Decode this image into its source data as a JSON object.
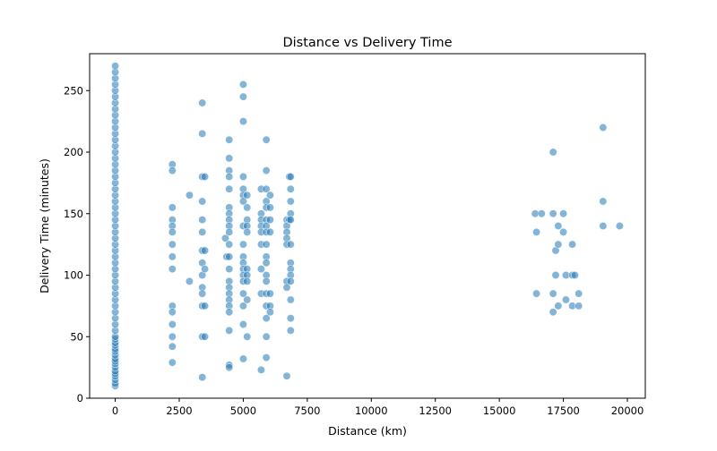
{
  "chart_data": {
    "type": "scatter",
    "title": "Distance vs Delivery Time",
    "xlabel": "Distance (km)",
    "ylabel": "Delivery Time (minutes)",
    "xlim": [
      -1000,
      20700
    ],
    "ylim": [
      0,
      280
    ],
    "xticks": [
      0,
      2500,
      5000,
      7500,
      10000,
      12500,
      15000,
      17500,
      20000
    ],
    "yticks": [
      0,
      50,
      100,
      150,
      200,
      250
    ],
    "grid": false,
    "marker_color": "#1f77b4",
    "marker_opacity": 0.55,
    "series": [
      {
        "points": [
          {
            "x": 0,
            "y": 10
          },
          {
            "x": 0,
            "y": 12
          },
          {
            "x": 0,
            "y": 15
          },
          {
            "x": 0,
            "y": 18
          },
          {
            "x": 0,
            "y": 20
          },
          {
            "x": 0,
            "y": 22
          },
          {
            "x": 0,
            "y": 25
          },
          {
            "x": 0,
            "y": 28
          },
          {
            "x": 0,
            "y": 30
          },
          {
            "x": 0,
            "y": 32
          },
          {
            "x": 0,
            "y": 35
          },
          {
            "x": 0,
            "y": 38
          },
          {
            "x": 0,
            "y": 40
          },
          {
            "x": 0,
            "y": 43
          },
          {
            "x": 0,
            "y": 45
          },
          {
            "x": 0,
            "y": 48
          },
          {
            "x": 0,
            "y": 50
          },
          {
            "x": 0,
            "y": 55
          },
          {
            "x": 0,
            "y": 60
          },
          {
            "x": 0,
            "y": 65
          },
          {
            "x": 0,
            "y": 70
          },
          {
            "x": 0,
            "y": 75
          },
          {
            "x": 0,
            "y": 80
          },
          {
            "x": 0,
            "y": 85
          },
          {
            "x": 0,
            "y": 90
          },
          {
            "x": 0,
            "y": 95
          },
          {
            "x": 0,
            "y": 100
          },
          {
            "x": 0,
            "y": 105
          },
          {
            "x": 0,
            "y": 110
          },
          {
            "x": 0,
            "y": 115
          },
          {
            "x": 0,
            "y": 120
          },
          {
            "x": 0,
            "y": 125
          },
          {
            "x": 0,
            "y": 130
          },
          {
            "x": 0,
            "y": 135
          },
          {
            "x": 0,
            "y": 140
          },
          {
            "x": 0,
            "y": 145
          },
          {
            "x": 0,
            "y": 150
          },
          {
            "x": 0,
            "y": 155
          },
          {
            "x": 0,
            "y": 160
          },
          {
            "x": 0,
            "y": 165
          },
          {
            "x": 0,
            "y": 170
          },
          {
            "x": 0,
            "y": 175
          },
          {
            "x": 0,
            "y": 180
          },
          {
            "x": 0,
            "y": 185
          },
          {
            "x": 0,
            "y": 190
          },
          {
            "x": 0,
            "y": 195
          },
          {
            "x": 0,
            "y": 200
          },
          {
            "x": 0,
            "y": 205
          },
          {
            "x": 0,
            "y": 210
          },
          {
            "x": 0,
            "y": 215
          },
          {
            "x": 0,
            "y": 220
          },
          {
            "x": 0,
            "y": 225
          },
          {
            "x": 0,
            "y": 230
          },
          {
            "x": 0,
            "y": 235
          },
          {
            "x": 0,
            "y": 240
          },
          {
            "x": 0,
            "y": 245
          },
          {
            "x": 0,
            "y": 250
          },
          {
            "x": 0,
            "y": 255
          },
          {
            "x": 0,
            "y": 260
          },
          {
            "x": 0,
            "y": 265
          },
          {
            "x": 0,
            "y": 270
          },
          {
            "x": 2230,
            "y": 190
          },
          {
            "x": 2230,
            "y": 185
          },
          {
            "x": 2230,
            "y": 155
          },
          {
            "x": 2230,
            "y": 145
          },
          {
            "x": 2230,
            "y": 140
          },
          {
            "x": 2230,
            "y": 135
          },
          {
            "x": 2230,
            "y": 125
          },
          {
            "x": 2230,
            "y": 115
          },
          {
            "x": 2230,
            "y": 105
          },
          {
            "x": 2230,
            "y": 75
          },
          {
            "x": 2230,
            "y": 70
          },
          {
            "x": 2230,
            "y": 60
          },
          {
            "x": 2230,
            "y": 50
          },
          {
            "x": 2230,
            "y": 42
          },
          {
            "x": 2230,
            "y": 29
          },
          {
            "x": 2900,
            "y": 165
          },
          {
            "x": 2900,
            "y": 95
          },
          {
            "x": 3400,
            "y": 240
          },
          {
            "x": 3400,
            "y": 215
          },
          {
            "x": 3400,
            "y": 180
          },
          {
            "x": 3400,
            "y": 160
          },
          {
            "x": 3400,
            "y": 145
          },
          {
            "x": 3400,
            "y": 135
          },
          {
            "x": 3400,
            "y": 120
          },
          {
            "x": 3400,
            "y": 110
          },
          {
            "x": 3400,
            "y": 100
          },
          {
            "x": 3400,
            "y": 90
          },
          {
            "x": 3400,
            "y": 85
          },
          {
            "x": 3400,
            "y": 75
          },
          {
            "x": 3400,
            "y": 50
          },
          {
            "x": 3400,
            "y": 17
          },
          {
            "x": 3500,
            "y": 180
          },
          {
            "x": 3500,
            "y": 120
          },
          {
            "x": 3500,
            "y": 105
          },
          {
            "x": 3500,
            "y": 75
          },
          {
            "x": 3500,
            "y": 50
          },
          {
            "x": 4300,
            "y": 130
          },
          {
            "x": 4350,
            "y": 115
          },
          {
            "x": 4450,
            "y": 210
          },
          {
            "x": 4450,
            "y": 195
          },
          {
            "x": 4450,
            "y": 185
          },
          {
            "x": 4450,
            "y": 180
          },
          {
            "x": 4450,
            "y": 170
          },
          {
            "x": 4450,
            "y": 155
          },
          {
            "x": 4450,
            "y": 150
          },
          {
            "x": 4450,
            "y": 145
          },
          {
            "x": 4450,
            "y": 140
          },
          {
            "x": 4450,
            "y": 135
          },
          {
            "x": 4450,
            "y": 125
          },
          {
            "x": 4450,
            "y": 115
          },
          {
            "x": 4450,
            "y": 105
          },
          {
            "x": 4450,
            "y": 95
          },
          {
            "x": 4450,
            "y": 90
          },
          {
            "x": 4450,
            "y": 85
          },
          {
            "x": 4450,
            "y": 80
          },
          {
            "x": 4450,
            "y": 75
          },
          {
            "x": 4450,
            "y": 70
          },
          {
            "x": 4450,
            "y": 55
          },
          {
            "x": 4450,
            "y": 27
          },
          {
            "x": 4450,
            "y": 25
          },
          {
            "x": 5000,
            "y": 255
          },
          {
            "x": 5000,
            "y": 245
          },
          {
            "x": 5000,
            "y": 225
          },
          {
            "x": 5000,
            "y": 180
          },
          {
            "x": 5000,
            "y": 170
          },
          {
            "x": 5000,
            "y": 165
          },
          {
            "x": 5000,
            "y": 160
          },
          {
            "x": 5000,
            "y": 140
          },
          {
            "x": 5000,
            "y": 125
          },
          {
            "x": 5000,
            "y": 115
          },
          {
            "x": 5000,
            "y": 110
          },
          {
            "x": 5000,
            "y": 105
          },
          {
            "x": 5000,
            "y": 100
          },
          {
            "x": 5000,
            "y": 95
          },
          {
            "x": 5000,
            "y": 85
          },
          {
            "x": 5000,
            "y": 75
          },
          {
            "x": 5000,
            "y": 60
          },
          {
            "x": 5000,
            "y": 32
          },
          {
            "x": 5150,
            "y": 165
          },
          {
            "x": 5150,
            "y": 155
          },
          {
            "x": 5150,
            "y": 145
          },
          {
            "x": 5150,
            "y": 140
          },
          {
            "x": 5150,
            "y": 135
          },
          {
            "x": 5150,
            "y": 105
          },
          {
            "x": 5150,
            "y": 100
          },
          {
            "x": 5150,
            "y": 95
          },
          {
            "x": 5150,
            "y": 80
          },
          {
            "x": 5150,
            "y": 50
          },
          {
            "x": 5700,
            "y": 170
          },
          {
            "x": 5700,
            "y": 150
          },
          {
            "x": 5700,
            "y": 145
          },
          {
            "x": 5700,
            "y": 140
          },
          {
            "x": 5700,
            "y": 135
          },
          {
            "x": 5700,
            "y": 125
          },
          {
            "x": 5700,
            "y": 105
          },
          {
            "x": 5700,
            "y": 85
          },
          {
            "x": 5700,
            "y": 23
          },
          {
            "x": 5900,
            "y": 210
          },
          {
            "x": 5900,
            "y": 185
          },
          {
            "x": 5900,
            "y": 170
          },
          {
            "x": 5900,
            "y": 160
          },
          {
            "x": 5900,
            "y": 155
          },
          {
            "x": 5900,
            "y": 145
          },
          {
            "x": 5900,
            "y": 140
          },
          {
            "x": 5900,
            "y": 135
          },
          {
            "x": 5900,
            "y": 125
          },
          {
            "x": 5900,
            "y": 115
          },
          {
            "x": 5900,
            "y": 110
          },
          {
            "x": 5900,
            "y": 100
          },
          {
            "x": 5900,
            "y": 95
          },
          {
            "x": 5900,
            "y": 85
          },
          {
            "x": 5900,
            "y": 75
          },
          {
            "x": 5900,
            "y": 65
          },
          {
            "x": 5900,
            "y": 50
          },
          {
            "x": 5900,
            "y": 33
          },
          {
            "x": 6050,
            "y": 165
          },
          {
            "x": 6050,
            "y": 155
          },
          {
            "x": 6050,
            "y": 145
          },
          {
            "x": 6050,
            "y": 135
          },
          {
            "x": 6050,
            "y": 85
          },
          {
            "x": 6050,
            "y": 75
          },
          {
            "x": 6050,
            "y": 70
          },
          {
            "x": 6700,
            "y": 145
          },
          {
            "x": 6700,
            "y": 140
          },
          {
            "x": 6700,
            "y": 135
          },
          {
            "x": 6700,
            "y": 130
          },
          {
            "x": 6700,
            "y": 125
          },
          {
            "x": 6700,
            "y": 95
          },
          {
            "x": 6700,
            "y": 90
          },
          {
            "x": 6700,
            "y": 18
          },
          {
            "x": 6800,
            "y": 180
          },
          {
            "x": 6800,
            "y": 145
          },
          {
            "x": 6850,
            "y": 180
          },
          {
            "x": 6850,
            "y": 170
          },
          {
            "x": 6850,
            "y": 160
          },
          {
            "x": 6850,
            "y": 150
          },
          {
            "x": 6850,
            "y": 145
          },
          {
            "x": 6850,
            "y": 125
          },
          {
            "x": 6850,
            "y": 110
          },
          {
            "x": 6850,
            "y": 105
          },
          {
            "x": 6850,
            "y": 100
          },
          {
            "x": 6850,
            "y": 95
          },
          {
            "x": 6850,
            "y": 80
          },
          {
            "x": 6850,
            "y": 65
          },
          {
            "x": 6850,
            "y": 55
          },
          {
            "x": 16400,
            "y": 150
          },
          {
            "x": 16450,
            "y": 135
          },
          {
            "x": 16450,
            "y": 85
          },
          {
            "x": 16650,
            "y": 150
          },
          {
            "x": 17100,
            "y": 200
          },
          {
            "x": 17100,
            "y": 150
          },
          {
            "x": 17100,
            "y": 85
          },
          {
            "x": 17100,
            "y": 70
          },
          {
            "x": 17200,
            "y": 120
          },
          {
            "x": 17200,
            "y": 100
          },
          {
            "x": 17300,
            "y": 140
          },
          {
            "x": 17300,
            "y": 125
          },
          {
            "x": 17300,
            "y": 75
          },
          {
            "x": 17500,
            "y": 150
          },
          {
            "x": 17500,
            "y": 135
          },
          {
            "x": 17600,
            "y": 100
          },
          {
            "x": 17600,
            "y": 80
          },
          {
            "x": 17850,
            "y": 125
          },
          {
            "x": 17850,
            "y": 100
          },
          {
            "x": 17850,
            "y": 75
          },
          {
            "x": 17950,
            "y": 100
          },
          {
            "x": 18100,
            "y": 85
          },
          {
            "x": 18100,
            "y": 75
          },
          {
            "x": 19050,
            "y": 220
          },
          {
            "x": 19050,
            "y": 160
          },
          {
            "x": 19050,
            "y": 140
          },
          {
            "x": 19700,
            "y": 140
          }
        ]
      }
    ]
  }
}
